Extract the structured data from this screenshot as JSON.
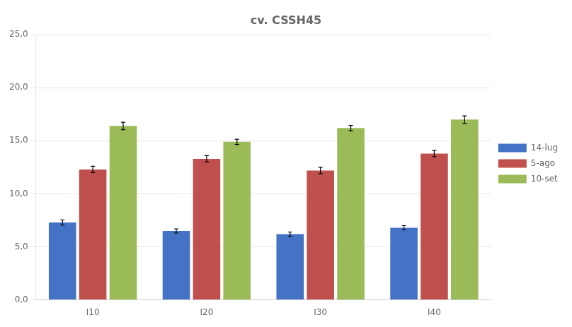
{
  "chart_data": {
    "type": "bar",
    "title": "cv. CSSH45",
    "categories": [
      "I10",
      "I20",
      "I30",
      "I40"
    ],
    "series": [
      {
        "name": "14-lug",
        "color": "#4472C4",
        "values": [
          7.3,
          6.5,
          6.2,
          6.8
        ],
        "errors": [
          0.25,
          0.2,
          0.2,
          0.2
        ]
      },
      {
        "name": "5-ago",
        "color": "#C0504D",
        "values": [
          12.3,
          13.3,
          12.2,
          13.8
        ],
        "errors": [
          0.3,
          0.3,
          0.3,
          0.3
        ]
      },
      {
        "name": "10-set",
        "color": "#9BBB59",
        "values": [
          16.4,
          14.9,
          16.2,
          17.0
        ],
        "errors": [
          0.35,
          0.25,
          0.25,
          0.35
        ]
      }
    ],
    "ylim": [
      0,
      25
    ],
    "yticks": [
      {
        "value": 0,
        "label": "0,0"
      },
      {
        "value": 5,
        "label": "5,0"
      },
      {
        "value": 10,
        "label": "10,0"
      },
      {
        "value": 15,
        "label": "15,0"
      },
      {
        "value": 20,
        "label": "20,0"
      },
      {
        "value": 25,
        "label": "25,0"
      }
    ],
    "grid": true,
    "legend": "right"
  }
}
